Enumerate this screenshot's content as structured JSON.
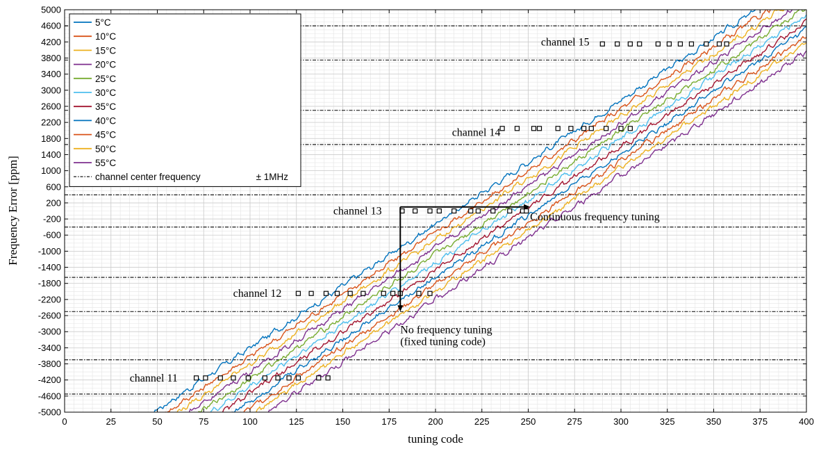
{
  "chart_data": {
    "type": "line",
    "xlabel": "tuning code",
    "ylabel": "Frequency Error  [ppm]",
    "xlim": [
      0,
      400
    ],
    "ylim": [
      -5000,
      5000
    ],
    "x_ticks": [
      0,
      25,
      50,
      75,
      100,
      125,
      150,
      175,
      200,
      225,
      250,
      275,
      300,
      325,
      350,
      375,
      400
    ],
    "y_ticks": [
      5000,
      4600,
      4200,
      3800,
      3400,
      3000,
      2600,
      2200,
      1800,
      1400,
      1000,
      600,
      200,
      -200,
      -600,
      -1000,
      -1400,
      -1800,
      -2200,
      -2600,
      -3000,
      -3400,
      -3800,
      -4200,
      -4600,
      -5000
    ],
    "grid": true,
    "legend_position": "top-left",
    "curve_slope_ppm_per_code": 32.5,
    "series": [
      {
        "name": "5°C",
        "color": "#0072BD",
        "x": [
          48,
          373
        ],
        "y": [
          -5000,
          5000
        ]
      },
      {
        "name": "10°C",
        "color": "#D95319",
        "x": [
          55,
          380
        ],
        "y": [
          -5000,
          5000
        ]
      },
      {
        "name": "15°C",
        "color": "#EDB120",
        "x": [
          61,
          386
        ],
        "y": [
          -5000,
          5000
        ]
      },
      {
        "name": "20°C",
        "color": "#7E2F8E",
        "x": [
          67,
          392
        ],
        "y": [
          -5000,
          5000
        ]
      },
      {
        "name": "25°C",
        "color": "#77AC30",
        "x": [
          73,
          398
        ],
        "y": [
          -5000,
          5000
        ]
      },
      {
        "name": "30°C",
        "color": "#4DBEEE",
        "x": [
          79,
          404
        ],
        "y": [
          -5000,
          5000
        ]
      },
      {
        "name": "35°C",
        "color": "#A2142F",
        "x": [
          85,
          410
        ],
        "y": [
          -5000,
          5000
        ]
      },
      {
        "name": "40°C",
        "color": "#0072BD",
        "x": [
          91,
          416
        ],
        "y": [
          -5000,
          5000
        ]
      },
      {
        "name": "45°C",
        "color": "#D95319",
        "x": [
          97,
          422
        ],
        "y": [
          -5000,
          5000
        ]
      },
      {
        "name": "50°C",
        "color": "#EDB120",
        "x": [
          103,
          428
        ],
        "y": [
          -5000,
          5000
        ]
      },
      {
        "name": "55°C",
        "color": "#7E2F8E",
        "x": [
          109,
          434
        ],
        "y": [
          -5000,
          5000
        ]
      }
    ],
    "channel_lines": {
      "name": "channel center frequency",
      "suffix": "± 1MHz",
      "values": [
        4600,
        3750,
        2500,
        1650,
        400,
        -400,
        -1650,
        -2500,
        -3700,
        -4550
      ]
    },
    "channels": [
      {
        "label": "channel 15",
        "label_x": 283,
        "label_y": 4200,
        "y": 4150,
        "x": [
          290,
          298,
          305,
          310,
          320,
          326,
          332,
          338,
          346,
          353,
          357
        ]
      },
      {
        "label": "channel 14",
        "label_x": 235,
        "label_y": 1950,
        "y": 2050,
        "x": [
          236,
          244,
          253,
          256,
          266,
          273,
          280,
          284,
          292,
          300,
          305
        ]
      },
      {
        "label": "channel 13",
        "label_x": 171,
        "label_y": 0,
        "y": 0,
        "x": [
          182,
          189,
          197,
          202,
          210,
          219,
          223,
          231,
          240,
          247,
          249
        ]
      },
      {
        "label": "channel 12",
        "label_x": 117,
        "label_y": -2050,
        "y": -2050,
        "x": [
          126,
          133,
          141,
          147,
          154,
          161,
          172,
          177,
          181,
          191,
          197
        ]
      },
      {
        "label": "channel 11",
        "label_x": 61,
        "label_y": -4150,
        "y": -4150,
        "x": [
          71,
          76,
          84,
          91,
          99,
          108,
          115,
          121,
          126,
          137,
          142
        ]
      }
    ],
    "annotations": [
      {
        "text": "Continuous frequency tuning",
        "x": 251,
        "y": -150
      },
      {
        "text": "No frequency tuning",
        "x": 181,
        "y": -2950
      },
      {
        "text": "(fixed tuning code)",
        "x": 181,
        "y": -3250
      }
    ],
    "arrows": [
      {
        "kind": "horizontal",
        "x1": 181,
        "x2": 251,
        "y": 100
      },
      {
        "kind": "vertical",
        "x": 181,
        "y1": 100,
        "y2": -2500
      }
    ]
  }
}
